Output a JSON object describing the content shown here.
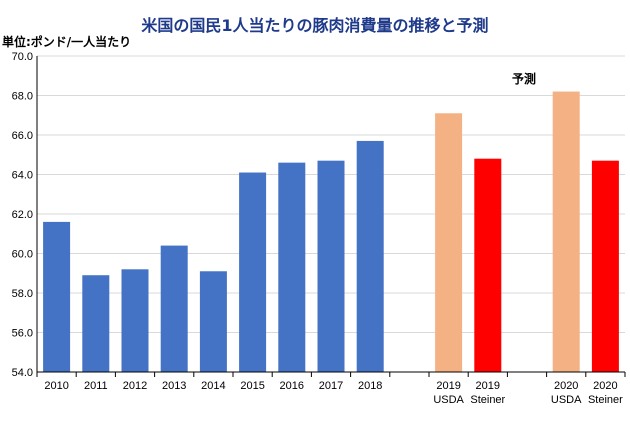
{
  "title": "米国の国民1人当たりの豚肉消費量の推移と予測",
  "unit_label": "単位:ポンド/一人当たり",
  "forecast_label": "予測",
  "colors": {
    "actual": "#4472c4",
    "usda": "#f4b183",
    "steiner": "#ff0000",
    "grid": "#d9d9d9",
    "axis": "#000000"
  },
  "chart_data": {
    "type": "bar",
    "title": "米国の国民1人当たりの豚肉消費量の推移と予測",
    "ylabel": "単位:ポンド/一人当たり",
    "ylim": [
      54.0,
      70.0
    ],
    "yticks": [
      "54.0",
      "56.0",
      "58.0",
      "60.0",
      "62.0",
      "64.0",
      "66.0",
      "68.0",
      "70.0"
    ],
    "grid": true,
    "categories": [
      {
        "label1": "2010",
        "label2": "",
        "value": 61.6,
        "kind": "actual"
      },
      {
        "label1": "2011",
        "label2": "",
        "value": 58.9,
        "kind": "actual"
      },
      {
        "label1": "2012",
        "label2": "",
        "value": 59.2,
        "kind": "actual"
      },
      {
        "label1": "2013",
        "label2": "",
        "value": 60.4,
        "kind": "actual"
      },
      {
        "label1": "2014",
        "label2": "",
        "value": 59.1,
        "kind": "actual"
      },
      {
        "label1": "2015",
        "label2": "",
        "value": 64.1,
        "kind": "actual"
      },
      {
        "label1": "2016",
        "label2": "",
        "value": 64.6,
        "kind": "actual"
      },
      {
        "label1": "2017",
        "label2": "",
        "value": 64.7,
        "kind": "actual"
      },
      {
        "label1": "2018",
        "label2": "",
        "value": 65.7,
        "kind": "actual"
      },
      {
        "label1": "",
        "label2": "",
        "value": null,
        "kind": "gap"
      },
      {
        "label1": "2019",
        "label2": "USDA",
        "value": 67.1,
        "kind": "usda"
      },
      {
        "label1": "2019",
        "label2": "Steiner",
        "value": 64.8,
        "kind": "steiner"
      },
      {
        "label1": "",
        "label2": "",
        "value": null,
        "kind": "gap"
      },
      {
        "label1": "2020",
        "label2": "USDA",
        "value": 68.2,
        "kind": "usda"
      },
      {
        "label1": "2020",
        "label2": "Steiner",
        "value": 64.7,
        "kind": "steiner"
      }
    ]
  }
}
